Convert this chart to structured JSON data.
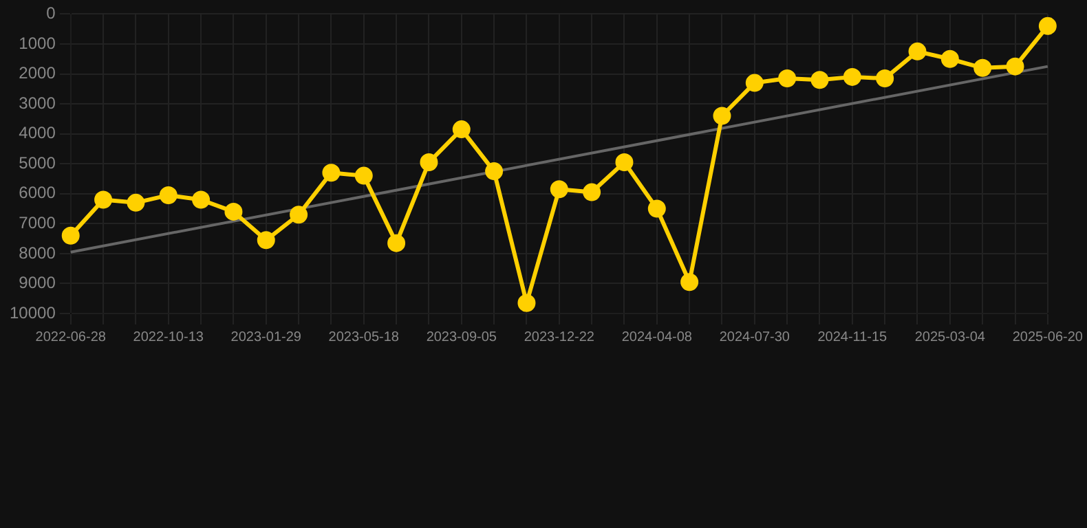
{
  "chart_data": {
    "type": "line",
    "categories": [
      "2022-06-28",
      null,
      null,
      "2022-10-13",
      null,
      null,
      "2023-01-29",
      null,
      null,
      "2023-05-18",
      null,
      null,
      "2023-09-05",
      null,
      null,
      "2023-12-22",
      null,
      null,
      "2024-04-08",
      null,
      null,
      "2024-07-30",
      null,
      null,
      "2024-11-15",
      null,
      null,
      "2025-03-04",
      null,
      null,
      "2025-06-20"
    ],
    "series": [
      {
        "color": "#ffd000",
        "marker": "circle",
        "values": [
          7400,
          6200,
          6300,
          6050,
          6200,
          6600,
          7550,
          6700,
          5300,
          5400,
          7650,
          4950,
          3850,
          5250,
          9650,
          5850,
          5950,
          4950,
          6500,
          8950,
          3400,
          2300,
          2150,
          2200,
          2100,
          2150,
          1250,
          1500,
          1800,
          1750,
          400
        ]
      },
      {
        "type": "line",
        "color": "#666666",
        "marker": "none",
        "values": [
          7950,
          null,
          null,
          null,
          null,
          null,
          null,
          null,
          null,
          null,
          null,
          null,
          null,
          null,
          null,
          null,
          null,
          null,
          null,
          null,
          null,
          null,
          null,
          null,
          null,
          null,
          null,
          null,
          null,
          null,
          1750
        ]
      }
    ],
    "ylim": [
      10000,
      0
    ],
    "yticks": [
      0,
      1000,
      2000,
      3000,
      4000,
      5000,
      6000,
      7000,
      8000,
      9000,
      10000
    ],
    "grid": true,
    "legend": false,
    "line_style": "solid"
  }
}
